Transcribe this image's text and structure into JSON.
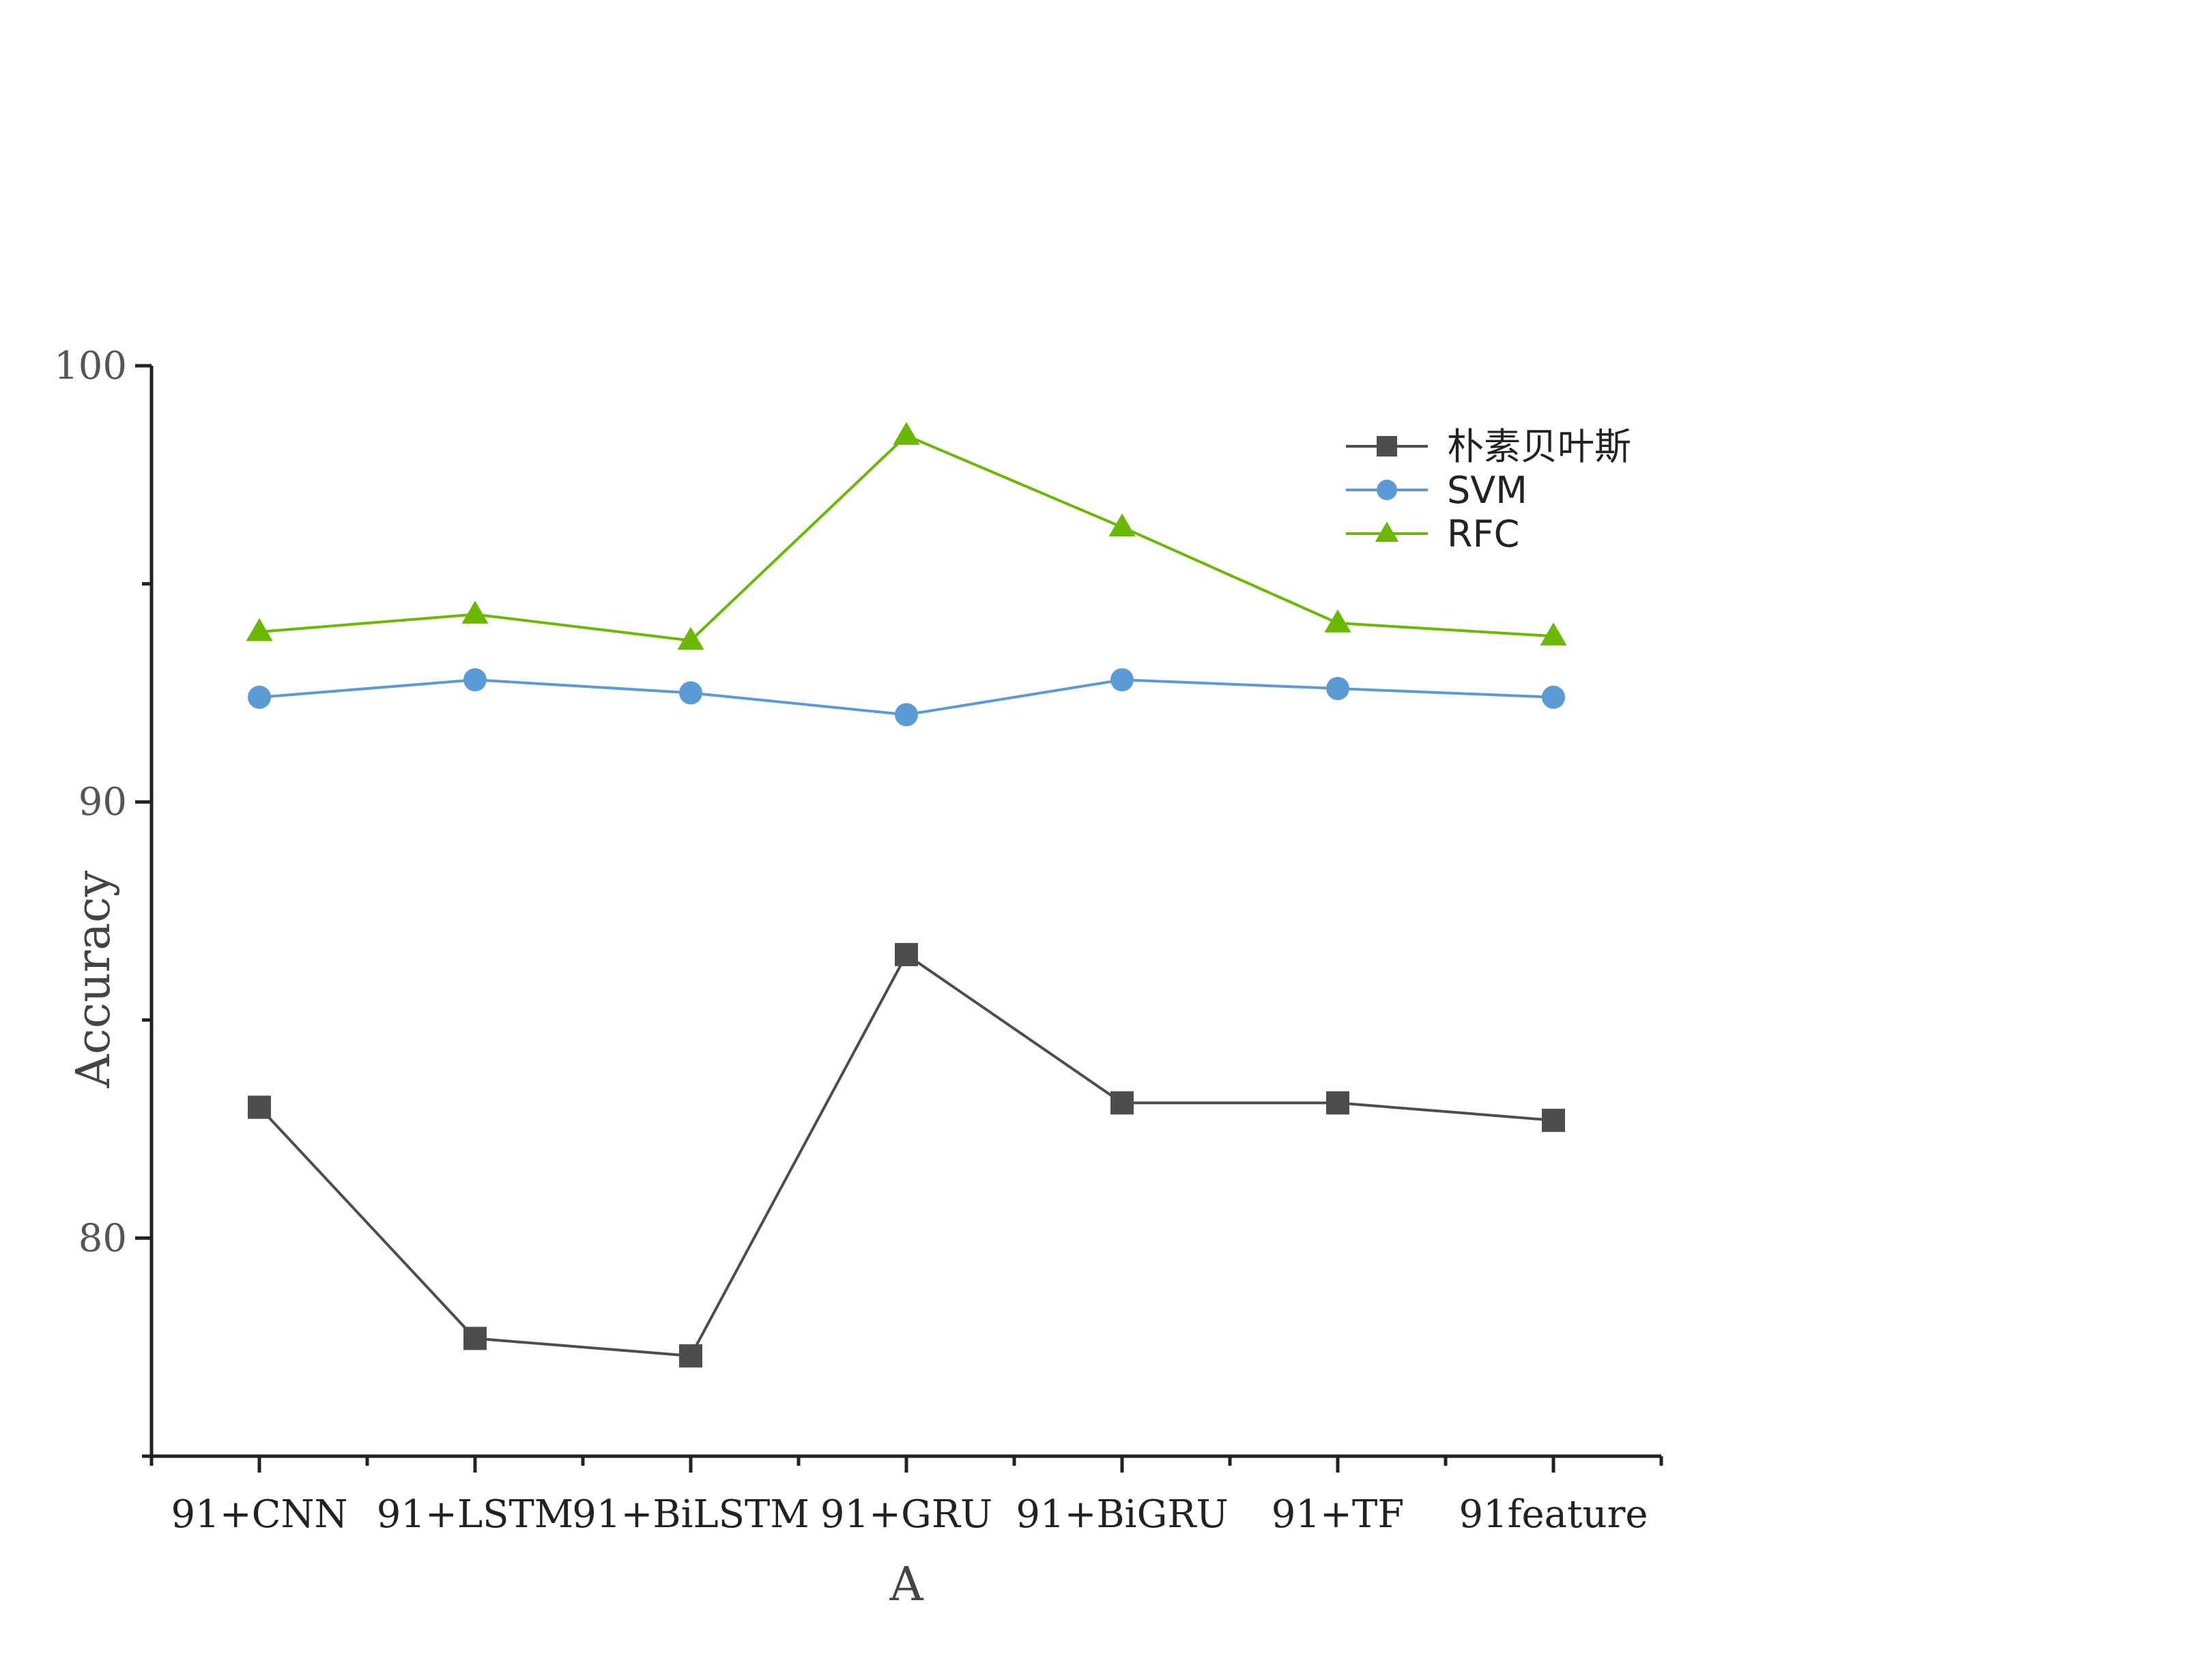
{
  "chart_data": {
    "type": "line",
    "title": "",
    "xlabel": "A",
    "ylabel": "Accuracy",
    "ylim": [
      75,
      100
    ],
    "yticks": [
      80,
      90,
      100
    ],
    "categories": [
      "91+CNN",
      "91+LSTM",
      "91+BiLSTM",
      "91+GRU",
      "91+BiGRU",
      "91+TF",
      "91feature"
    ],
    "legend_position": "top-right",
    "grid": false,
    "series": [
      {
        "name": "朴素贝叶斯",
        "color": "#4d4d4d",
        "marker": "square",
        "values": [
          83.0,
          77.7,
          77.3,
          86.5,
          83.1,
          83.1,
          82.7
        ]
      },
      {
        "name": "SVM",
        "color": "#5b9bd5",
        "marker": "circle",
        "values": [
          92.4,
          92.8,
          92.5,
          92.0,
          92.8,
          92.6,
          92.4
        ]
      },
      {
        "name": "RFC",
        "color": "#6ab800",
        "marker": "triangle",
        "values": [
          93.9,
          94.3,
          93.7,
          98.4,
          96.3,
          94.1,
          93.8
        ]
      }
    ]
  }
}
